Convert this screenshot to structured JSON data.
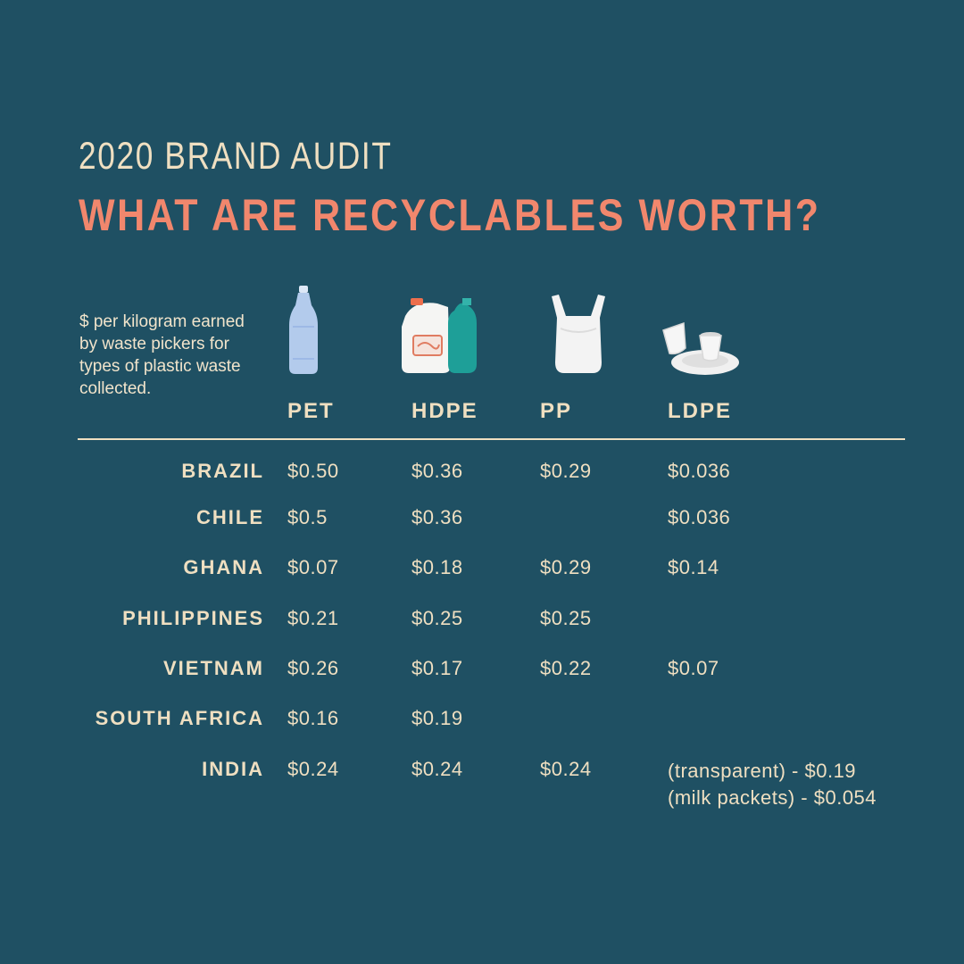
{
  "header": {
    "kicker": "2020 BRAND AUDIT",
    "title": "WHAT ARE RECYCLABLES WORTH?"
  },
  "note": "$ per kilogram earned by waste pickers for types of plastic waste collected.",
  "columns": [
    {
      "label": "PET",
      "icon": "plastic-bottle-icon"
    },
    {
      "label": "HDPE",
      "icon": "milk-jug-and-shampoo-bottle-icon"
    },
    {
      "label": "PP",
      "icon": "plastic-bag-icon"
    },
    {
      "label": "LDPE",
      "icon": "plastic-cups-and-plate-icon"
    }
  ],
  "rows": [
    {
      "country": "BRAZIL",
      "values": [
        "$0.50",
        "$0.36",
        "$0.29",
        "$0.036"
      ]
    },
    {
      "country": "CHILE",
      "values": [
        "$0.5",
        "$0.36",
        "",
        "$0.036"
      ]
    },
    {
      "country": "GHANA",
      "values": [
        "$0.07",
        "$0.18",
        "$0.29",
        "$0.14"
      ]
    },
    {
      "country": "PHILIPPINES",
      "values": [
        "$0.21",
        "$0.25",
        "$0.25",
        ""
      ]
    },
    {
      "country": "VIETNAM",
      "values": [
        "$0.26",
        "$0.17",
        "$0.22",
        "$0.07"
      ]
    },
    {
      "country": "SOUTH AFRICA",
      "values": [
        "$0.16",
        "$0.19",
        "",
        ""
      ]
    },
    {
      "country": "INDIA",
      "values": [
        "$0.24",
        "$0.24",
        "$0.24",
        [
          "(transparent) - $0.19",
          "(milk packets) - $0.054"
        ]
      ]
    }
  ],
  "colors": {
    "background": "#1f5063",
    "text": "#efdfc1",
    "accent": "#f1876d"
  },
  "chart_data": {
    "type": "table",
    "title": "WHAT ARE RECYCLABLES WORTH?",
    "subtitle": "2020 BRAND AUDIT",
    "columns": [
      "PET",
      "HDPE",
      "PP",
      "LDPE"
    ],
    "categories": [
      "BRAZIL",
      "CHILE",
      "GHANA",
      "PHILIPPINES",
      "VIETNAM",
      "SOUTH AFRICA",
      "INDIA"
    ],
    "series": [
      {
        "name": "PET",
        "values": [
          0.5,
          0.5,
          0.07,
          0.21,
          0.26,
          0.16,
          0.24
        ]
      },
      {
        "name": "HDPE",
        "values": [
          0.36,
          0.36,
          0.18,
          0.25,
          0.17,
          0.19,
          0.24
        ]
      },
      {
        "name": "PP",
        "values": [
          0.29,
          null,
          0.29,
          0.25,
          0.22,
          null,
          0.24
        ]
      },
      {
        "name": "LDPE",
        "values": [
          0.036,
          0.036,
          0.14,
          null,
          0.07,
          null,
          [
            0.19,
            0.054
          ]
        ]
      }
    ],
    "units": "$ per kilogram"
  }
}
